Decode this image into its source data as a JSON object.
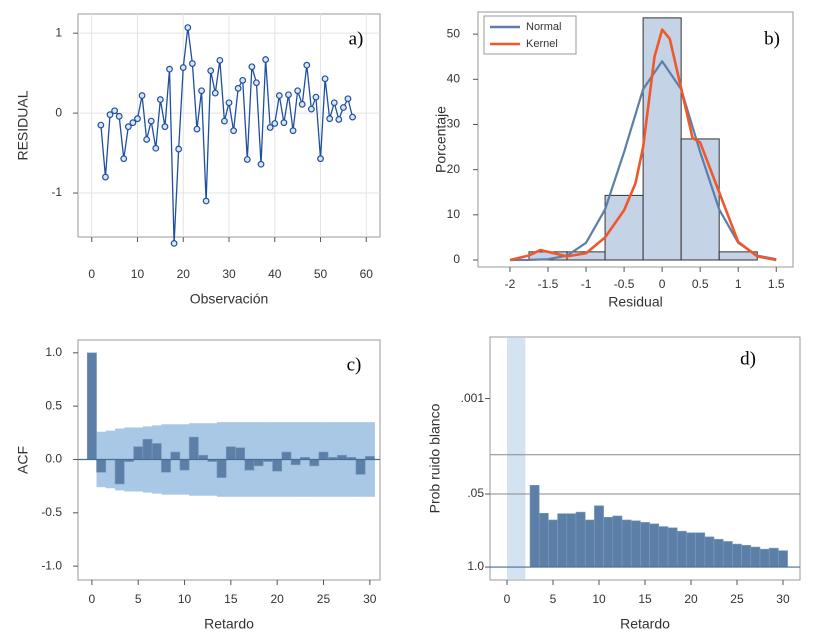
{
  "chart_data": [
    {
      "type": "line",
      "annotation": "a)",
      "xlabel": "Observación",
      "ylabel": "RESIDUAL",
      "color": "#1f4fa0",
      "grid": true,
      "x": [
        2,
        3,
        4,
        5,
        6,
        7,
        8,
        9,
        10,
        11,
        12,
        13,
        14,
        15,
        16,
        17,
        18,
        19,
        20,
        21,
        22,
        23,
        24,
        25,
        26,
        27,
        28,
        29,
        30,
        31,
        32,
        33,
        34,
        35,
        36,
        37,
        38,
        39,
        40,
        41,
        42,
        43,
        44,
        45,
        46,
        47,
        48,
        49,
        50,
        51,
        52,
        53,
        54,
        55,
        56,
        57
      ],
      "values": [
        -0.15,
        -0.8,
        -0.02,
        0.03,
        -0.04,
        -0.57,
        -0.17,
        -0.12,
        -0.07,
        0.22,
        -0.33,
        -0.1,
        -0.44,
        0.17,
        -0.17,
        0.55,
        -1.63,
        -0.45,
        0.57,
        1.07,
        0.62,
        -0.2,
        0.28,
        -1.1,
        0.53,
        0.25,
        0.66,
        -0.1,
        0.13,
        -0.22,
        0.31,
        0.41,
        -0.58,
        0.58,
        0.38,
        -0.64,
        0.67,
        -0.18,
        -0.13,
        0.22,
        -0.12,
        0.23,
        -0.22,
        0.28,
        0.11,
        0.6,
        0.05,
        0.2,
        -0.57,
        0.43,
        -0.07,
        0.13,
        -0.08,
        0.07,
        0.18,
        -0.05
      ],
      "xlim": [
        -3,
        63
      ],
      "xticks": [
        0,
        10,
        20,
        30,
        40,
        50,
        60
      ],
      "ylim": [
        -1.55,
        1.24
      ],
      "yticks": [
        -1,
        0,
        1
      ]
    },
    {
      "type": "histogram",
      "annotation": "b)",
      "xlabel": "Residual",
      "ylabel": "Porcentaje",
      "color": "#c5d3e6",
      "bins": [
        -1.75,
        -1.25,
        -0.75,
        -0.25,
        0.25,
        0.75,
        1.25
      ],
      "counts": [
        1.8,
        1.8,
        14.3,
        53.6,
        26.8,
        1.8
      ],
      "series": [
        {
          "name": "Normal",
          "color": "#5d7ea8",
          "x": [
            -2,
            -1.75,
            -1.5,
            -1.25,
            -1,
            -0.75,
            -0.5,
            -0.25,
            0,
            0.25,
            0.5,
            0.75,
            1,
            1.25,
            1.5
          ],
          "values": [
            0,
            0.02,
            0.18,
            0.97,
            3.8,
            11.2,
            23.9,
            37.8,
            44,
            37.8,
            23.9,
            11.2,
            3.8,
            0.97,
            0.18
          ]
        },
        {
          "name": "Kernel",
          "color": "#f0582c",
          "x": [
            -2,
            -1.75,
            -1.6,
            -1.25,
            -1,
            -0.75,
            -0.5,
            -0.35,
            -0.25,
            -0.1,
            0,
            0.1,
            0.25,
            0.4,
            0.5,
            0.75,
            1,
            1.25,
            1.5
          ],
          "values": [
            0,
            1,
            2.2,
            0.8,
            1.5,
            5,
            11,
            17,
            25,
            45,
            51,
            49,
            38,
            27,
            26,
            15,
            4,
            0.8,
            0
          ]
        }
      ],
      "legend": "upper left",
      "xlim": [
        -2.42,
        1.72
      ],
      "xticks": [
        -2,
        -1.5,
        -1,
        -0.5,
        0,
        0.5,
        1,
        1.5
      ],
      "ylim": [
        -1.55,
        54.9
      ],
      "yticks": [
        0,
        10,
        20,
        30,
        40,
        50
      ]
    },
    {
      "type": "bar",
      "annotation": "c)",
      "xlabel": "Retardo",
      "ylabel": "ACF",
      "color": "#5b7fa6",
      "x": [
        0,
        1,
        2,
        3,
        4,
        5,
        6,
        7,
        8,
        9,
        10,
        11,
        12,
        13,
        14,
        15,
        16,
        17,
        18,
        19,
        20,
        21,
        22,
        23,
        24,
        25,
        26,
        27,
        28,
        29,
        30
      ],
      "values": [
        1.0,
        -0.12,
        0.0,
        -0.23,
        -0.02,
        0.12,
        0.19,
        0.15,
        -0.12,
        0.07,
        -0.1,
        0.21,
        0.04,
        -0.02,
        -0.17,
        0.12,
        0.11,
        -0.1,
        -0.06,
        -0.02,
        -0.11,
        0.07,
        -0.05,
        0.02,
        -0.06,
        0.07,
        0.02,
        0.04,
        0.02,
        -0.14,
        0.03
      ],
      "confidence_band": {
        "color": "#a9c8e6",
        "upper": [
          null,
          0.26,
          0.27,
          0.29,
          0.3,
          0.3,
          0.31,
          0.32,
          0.33,
          0.33,
          0.33,
          0.34,
          0.34,
          0.34,
          0.35,
          0.35,
          0.35,
          0.35,
          0.35,
          0.35,
          0.35,
          0.35,
          0.35,
          0.35,
          0.35,
          0.35,
          0.35,
          0.35,
          0.35,
          0.35,
          0.35
        ],
        "lower": [
          null,
          -0.26,
          -0.27,
          -0.29,
          -0.3,
          -0.3,
          -0.31,
          -0.32,
          -0.33,
          -0.33,
          -0.33,
          -0.34,
          -0.34,
          -0.34,
          -0.35,
          -0.35,
          -0.35,
          -0.35,
          -0.35,
          -0.35,
          -0.35,
          -0.35,
          -0.35,
          -0.35,
          -0.35,
          -0.35,
          -0.35,
          -0.35,
          -0.35,
          -0.35,
          -0.35
        ]
      },
      "xlim": [
        -1.5,
        31.1
      ],
      "xticks": [
        0,
        5,
        10,
        15,
        20,
        25,
        30
      ],
      "ylim": [
        -1.13,
        1.12
      ],
      "yticks": [
        {
          "value": -1,
          "label": "-1.0"
        },
        -0.5,
        {
          "value": 0,
          "label": "0.0"
        },
        0.5,
        {
          "value": 1,
          "label": "1.0"
        }
      ]
    },
    {
      "type": "bar",
      "annotation": "d)",
      "xlabel": "Retardo",
      "ylabel": "Prob ruido blanco",
      "color": "#5b7fa6",
      "yscale": "neglog10",
      "x": [
        3,
        4,
        5,
        6,
        7,
        8,
        9,
        10,
        11,
        12,
        13,
        14,
        15,
        16,
        17,
        18,
        19,
        20,
        21,
        22,
        23,
        24,
        25,
        26,
        27,
        28,
        29,
        30
      ],
      "values": [
        0.035,
        0.11,
        0.145,
        0.112,
        0.112,
        0.105,
        0.145,
        0.081,
        0.13,
        0.123,
        0.145,
        0.15,
        0.16,
        0.17,
        0.19,
        0.2,
        0.23,
        0.245,
        0.245,
        0.29,
        0.32,
        0.35,
        0.39,
        0.41,
        0.44,
        0.48,
        0.46,
        0.51
      ],
      "highlight_range": [
        0,
        2
      ],
      "highlight_color": "#d4e3f1",
      "reference_lines": [
        0.05,
        0.01
      ],
      "xlim": [
        -1.85,
        31.85
      ],
      "xticks": [
        0,
        5,
        10,
        15,
        20,
        25,
        30
      ],
      "ylim": [
        1.7,
        8e-05
      ],
      "yticks": [
        {
          "value": 1,
          "label": "1.0"
        },
        {
          "value": 0.05,
          "label": ".05"
        },
        {
          "value": 0.001,
          "label": ".001"
        }
      ]
    }
  ]
}
